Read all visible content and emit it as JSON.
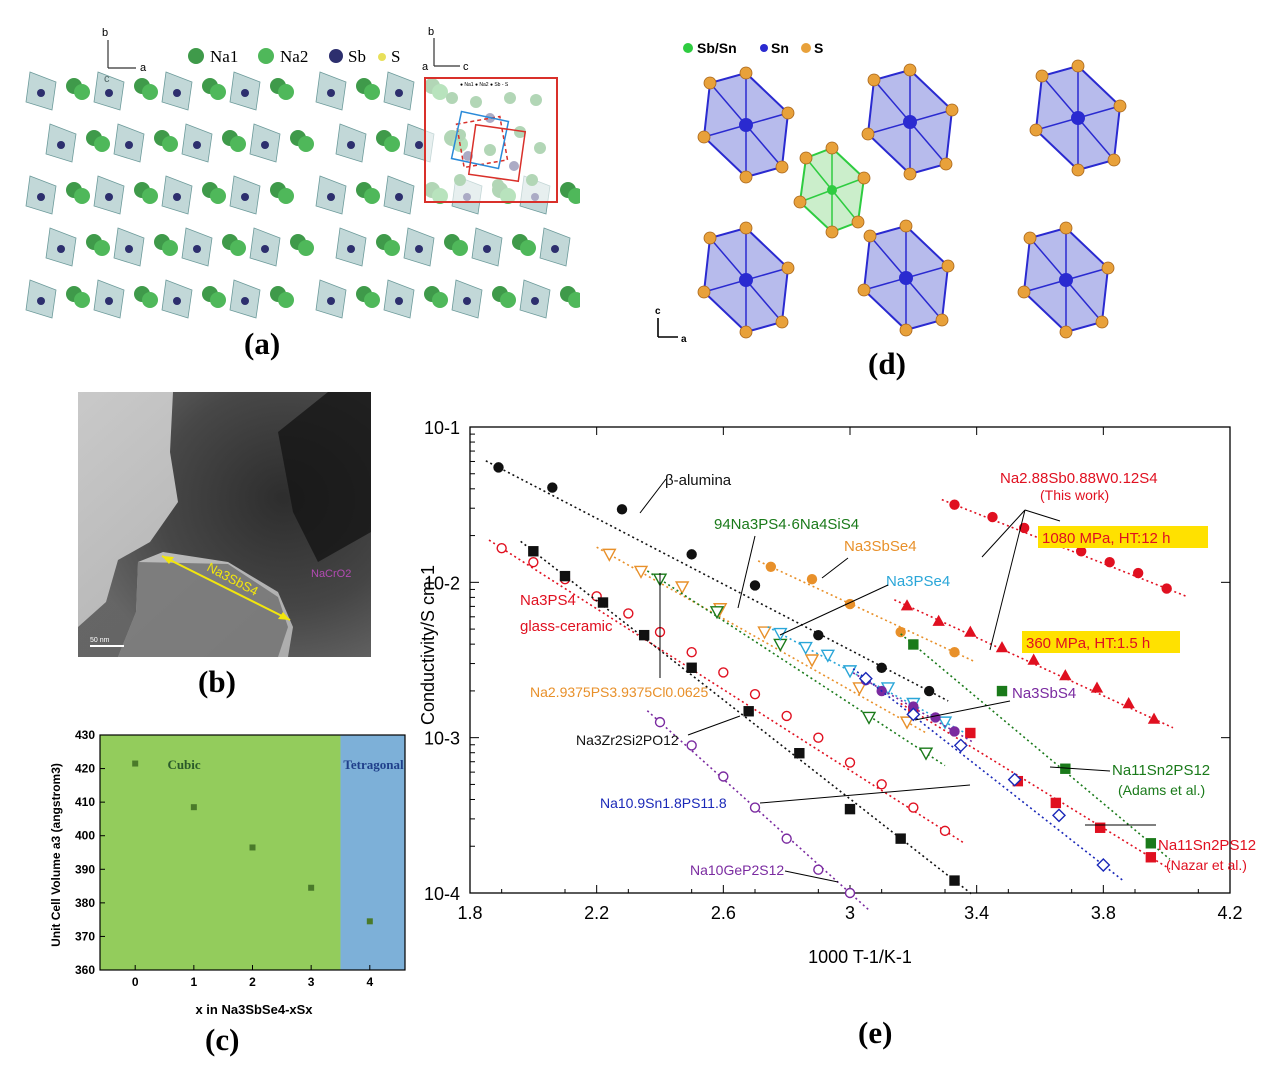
{
  "panel_labels": {
    "a": "(a)",
    "b": "(b)",
    "c": "(c)",
    "d": "(d)",
    "e": "(e)"
  },
  "panel_a": {
    "axes": {
      "b": "b",
      "a": "a",
      "c": "c"
    },
    "legend": [
      {
        "label": "Na1",
        "color": "#3f9a4a"
      },
      {
        "label": "Na2",
        "color": "#4fb85a"
      },
      {
        "label": "Sb",
        "color": "#2d2f6e"
      },
      {
        "label": "S",
        "color": "#e8e05a"
      }
    ],
    "inset_legend": "● Na1 ● Na2 ● Sb - S"
  },
  "panel_b": {
    "phase1": "Na3SbS4",
    "phase2": "NaCrO2",
    "scale": "50 nm"
  },
  "panel_d": {
    "legend": [
      {
        "label": "Sb/Sn",
        "color": "#2ecc40"
      },
      {
        "label": "Sn",
        "color": "#2a2ad0"
      },
      {
        "label": "S",
        "color": "#e8a13a"
      }
    ],
    "axes": {
      "c": "c",
      "a": "a"
    }
  },
  "chart_data": [
    {
      "id": "c",
      "type": "scatter",
      "xlabel": "x in Na3SbSe4-xSx",
      "ylabel": "Unit Cell Volume a3 (angstrom3)",
      "xlim": [
        -0.6,
        4.6
      ],
      "ylim": [
        360,
        430
      ],
      "xticks": [
        0,
        1,
        2,
        3,
        4
      ],
      "yticks": [
        360,
        370,
        380,
        390,
        400,
        410,
        420,
        430
      ],
      "regions": [
        {
          "label": "Cubic",
          "from": -0.6,
          "to": 3.5,
          "color": "#93cc5c"
        },
        {
          "label": "Tetragonal",
          "from": 3.5,
          "to": 4.6,
          "color": "#7db0d8"
        }
      ],
      "x": [
        0,
        1,
        2,
        3,
        4
      ],
      "y": [
        421.5,
        408.5,
        396.5,
        384.5,
        374.5
      ]
    },
    {
      "id": "e",
      "type": "scatter",
      "xlabel": "1000 T-1/K-1",
      "ylabel": "Conductivity/S cm-1",
      "xlim": [
        1.8,
        4.2
      ],
      "ylim_log10": [
        -4,
        -1
      ],
      "xticks": [
        "1.8",
        "2.2",
        "2.6",
        "3",
        "3.4",
        "3.8",
        "4.2"
      ],
      "yticks": [
        "10-1",
        "10-2",
        "10-3",
        "10-4"
      ],
      "series": [
        {
          "name": "β-alumina",
          "color": "#111111",
          "marker": "circle",
          "fill": true,
          "x": [
            1.89,
            2.06,
            2.28,
            2.5,
            2.7,
            2.9,
            3.1,
            3.25
          ],
          "logy": [
            -1.26,
            -1.39,
            -1.53,
            -1.82,
            -2.02,
            -2.34,
            -2.55,
            -2.7
          ]
        },
        {
          "name": "Na2.88Sb0.88W0.12S4 1080 MPa",
          "color": "#e01020",
          "marker": "circle",
          "fill": true,
          "x": [
            3.33,
            3.45,
            3.55,
            3.64,
            3.73,
            3.82,
            3.91,
            4.0
          ],
          "logy": [
            -1.5,
            -1.58,
            -1.65,
            -1.7,
            -1.8,
            -1.87,
            -1.94,
            -2.04
          ]
        },
        {
          "name": "Na2.88Sb0.88W0.12S4 360 MPa",
          "color": "#e01020",
          "marker": "triangle",
          "fill": true,
          "x": [
            3.18,
            3.28,
            3.38,
            3.48,
            3.58,
            3.68,
            3.78,
            3.88,
            3.96
          ],
          "logy": [
            -2.15,
            -2.25,
            -2.32,
            -2.42,
            -2.5,
            -2.6,
            -2.68,
            -2.78,
            -2.88
          ]
        },
        {
          "name": "Na3SbSe4",
          "color": "#e8902a",
          "marker": "circle",
          "fill": true,
          "x": [
            2.75,
            2.88,
            3.0,
            3.16,
            3.33
          ],
          "logy": [
            -1.9,
            -1.98,
            -2.14,
            -2.32,
            -2.45
          ]
        },
        {
          "name": "Na11Sn2PS12 (Adams et al.)",
          "color": "#1a7a1a",
          "marker": "square",
          "fill": true,
          "x": [
            3.2,
            3.48,
            3.68,
            3.95
          ],
          "logy": [
            -2.4,
            -2.7,
            -3.2,
            -3.68
          ]
        },
        {
          "name": "Na11Sn2PS12 (Nazar et al.)",
          "color": "#e01020",
          "marker": "square",
          "fill": true,
          "x": [
            3.2,
            3.38,
            3.53,
            3.65,
            3.79,
            3.95
          ],
          "logy": [
            -2.83,
            -2.97,
            -3.28,
            -3.42,
            -3.58,
            -3.77
          ]
        },
        {
          "name": "Na3PS4 glass-ceramic",
          "color": "#e01020",
          "marker": "circle",
          "fill": false,
          "x": [
            1.9,
            2.0,
            2.1,
            2.2,
            2.3,
            2.4,
            2.5,
            2.6,
            2.7,
            2.8,
            2.9,
            3.0,
            3.1,
            3.2,
            3.3
          ],
          "logy": [
            -1.78,
            -1.87,
            -1.98,
            -2.09,
            -2.2,
            -2.32,
            -2.45,
            -2.58,
            -2.72,
            -2.86,
            -3.0,
            -3.16,
            -3.3,
            -3.45,
            -3.6
          ]
        },
        {
          "name": "Na2.9375PS3.9375Cl0.0625",
          "color": "#e8902a",
          "marker": "triangle-down",
          "fill": false,
          "x": [
            2.24,
            2.34,
            2.47,
            2.59,
            2.73,
            2.88,
            3.03,
            3.18
          ],
          "logy": [
            -1.82,
            -1.93,
            -2.03,
            -2.17,
            -2.32,
            -2.5,
            -2.68,
            -2.9
          ]
        },
        {
          "name": "94Na3PS4-6Na4SiS4",
          "color": "#1a7a1a",
          "marker": "triangle-down",
          "fill": false,
          "x": [
            2.4,
            2.58,
            2.78,
            3.06,
            3.24
          ],
          "logy": [
            -1.98,
            -2.19,
            -2.4,
            -2.87,
            -3.1
          ]
        },
        {
          "name": "Na3PSe4",
          "color": "#2aa6d8",
          "marker": "triangle-down",
          "fill": false,
          "x": [
            2.78,
            2.86,
            2.93,
            3.0,
            3.12,
            3.2,
            3.3
          ],
          "logy": [
            -2.33,
            -2.42,
            -2.47,
            -2.57,
            -2.68,
            -2.78,
            -2.9
          ]
        },
        {
          "name": "Na3SbS4",
          "color": "#7a2aa0",
          "marker": "circle",
          "fill": true,
          "x": [
            3.05,
            3.1,
            3.2,
            3.27,
            3.33
          ],
          "logy": [
            -2.63,
            -2.7,
            -2.8,
            -2.87,
            -2.96
          ]
        },
        {
          "name": "Na10.9Sn1.8PS11.8",
          "color": "#1a28b8",
          "marker": "diamond",
          "fill": false,
          "x": [
            3.05,
            3.2,
            3.35,
            3.52,
            3.66,
            3.8
          ],
          "logy": [
            -2.62,
            -2.85,
            -3.05,
            -3.27,
            -3.5,
            -3.82
          ]
        },
        {
          "name": "Na3Zr2Si2PO12",
          "color": "#111111",
          "marker": "square",
          "fill": true,
          "x": [
            2.0,
            2.1,
            2.22,
            2.35,
            2.5,
            2.68,
            2.84,
            3.0,
            3.16,
            3.33
          ],
          "logy": [
            -1.8,
            -1.96,
            -2.13,
            -2.34,
            -2.55,
            -2.83,
            -3.1,
            -3.46,
            -3.65,
            -3.92
          ]
        },
        {
          "name": "Na10GeP2S12",
          "color": "#7a2aa0",
          "marker": "circle",
          "fill": false,
          "x": [
            2.4,
            2.5,
            2.6,
            2.7,
            2.8,
            2.9,
            3.0
          ],
          "logy": [
            -2.9,
            -3.05,
            -3.25,
            -3.45,
            -3.65,
            -3.85,
            -4.0
          ]
        }
      ],
      "annotations": {
        "beta": "β-alumina",
        "nsw1": "Na2.88Sb0.88W0.12S4",
        "nsw2": "(This work)",
        "hl1": "1080 MPa, HT:12 h",
        "hl2": "360 MPa, HT:1.5 h",
        "si": "94Na3PS4·6Na4SiS4",
        "sbse": "Na3SbSe4",
        "pse": "Na3PSe4",
        "glass1": "Na3PS4",
        "glass2": "glass-ceramic",
        "cl": "Na2.9375PS3.9375Cl0.0625",
        "nzs": "Na3Zr2Si2PO12",
        "sbs": "Na3SbS4",
        "adams1": "Na11Sn2PS12",
        "adams2": "(Adams et al.)",
        "nazar1": "Na11Sn2PS12",
        "nazar2": "(Nazar et al.)",
        "snps": "Na10.9Sn1.8PS11.8",
        "lgps": "Na10GeP2S12"
      }
    }
  ]
}
